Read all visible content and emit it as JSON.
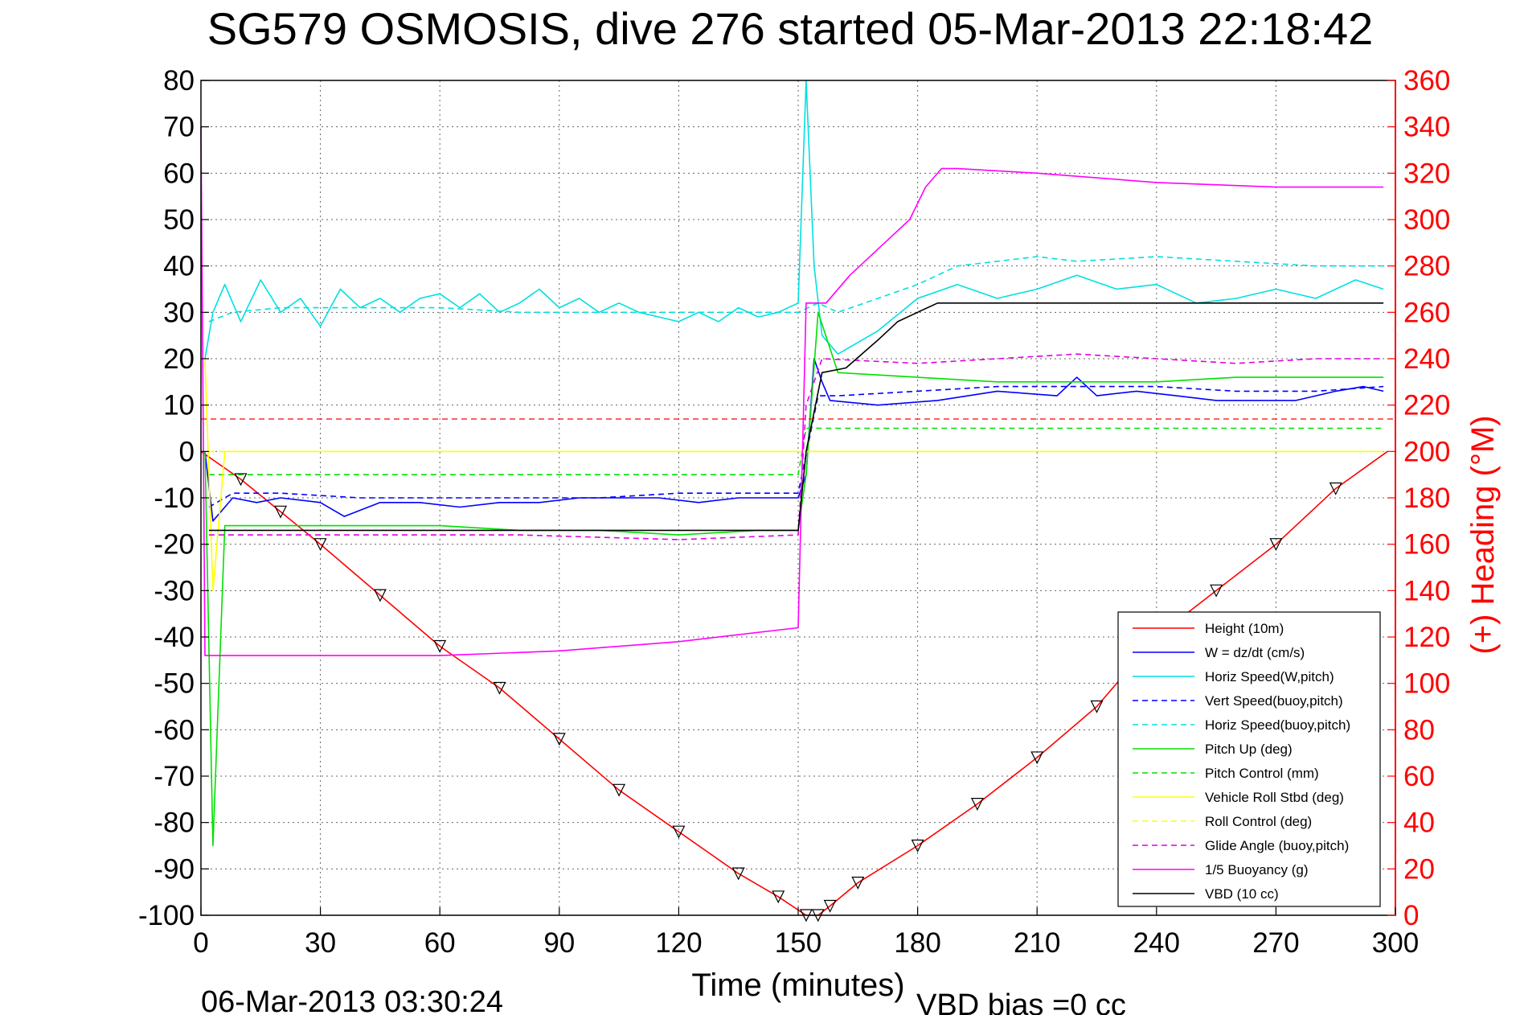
{
  "chart_data": {
    "type": "line",
    "title": "SG579 OSMOSIS, dive 276 started 05-Mar-2013 22:18:42",
    "xlabel": "Time (minutes)",
    "ylabel_right": "(+) Heading (°M)",
    "xlim": [
      0,
      300
    ],
    "ylim": [
      -100,
      80
    ],
    "ylim_right": [
      0,
      360
    ],
    "x_ticks": [
      0,
      30,
      60,
      90,
      120,
      150,
      180,
      210,
      240,
      270,
      300
    ],
    "y_ticks": [
      80,
      70,
      60,
      50,
      40,
      30,
      20,
      10,
      0,
      -10,
      -20,
      -30,
      -40,
      -50,
      -60,
      -70,
      -80,
      -90,
      -100
    ],
    "y_ticks_right": [
      360,
      340,
      320,
      300,
      280,
      260,
      240,
      220,
      200,
      180,
      160,
      140,
      120,
      100,
      80,
      60,
      40,
      20,
      0
    ],
    "grid": true,
    "legend_position": "bottom-right",
    "footer_left": "06-Mar-2013 03:30:24",
    "footer_right": "VBD bias =0 cc",
    "series": [
      {
        "name": "Height (10m)",
        "color": "#ff0000",
        "style": "solid",
        "x": [
          0,
          10,
          20,
          30,
          45,
          60,
          75,
          90,
          105,
          120,
          135,
          145,
          152,
          155,
          158,
          165,
          180,
          195,
          210,
          225,
          240,
          255,
          270,
          285,
          298
        ],
        "y": [
          0,
          -6,
          -13,
          -20,
          -31,
          -42,
          -51,
          -62,
          -73,
          -82,
          -91,
          -96,
          -100,
          -100,
          -98,
          -93,
          -85,
          -76,
          -66,
          -55,
          -40,
          -30,
          -20,
          -8,
          0
        ]
      },
      {
        "name": "W = dz/dt (cm/s)",
        "color": "#0000ff",
        "style": "solid",
        "x": [
          1,
          3,
          8,
          14,
          20,
          30,
          36,
          45,
          55,
          65,
          75,
          85,
          95,
          105,
          115,
          125,
          135,
          145,
          150,
          152,
          154,
          156,
          158,
          170,
          185,
          200,
          215,
          220,
          225,
          235,
          245,
          255,
          265,
          275,
          285,
          292,
          297
        ],
        "y": [
          0,
          -15,
          -10,
          -11,
          -10,
          -11,
          -14,
          -11,
          -11,
          -12,
          -11,
          -11,
          -10,
          -10,
          -10,
          -11,
          -10,
          -10,
          -10,
          -5,
          20,
          15,
          11,
          10,
          11,
          13,
          12,
          16,
          12,
          13,
          12,
          11,
          11,
          11,
          13,
          14,
          13
        ]
      },
      {
        "name": "Horiz Speed(W,pitch)",
        "color": "#00e0e0",
        "style": "solid",
        "x": [
          1,
          3,
          6,
          10,
          15,
          20,
          25,
          30,
          35,
          40,
          45,
          50,
          55,
          60,
          65,
          70,
          75,
          80,
          85,
          90,
          95,
          100,
          105,
          110,
          115,
          120,
          125,
          130,
          135,
          140,
          145,
          150,
          152,
          154,
          156,
          160,
          170,
          180,
          190,
          200,
          210,
          220,
          230,
          240,
          250,
          260,
          270,
          280,
          290,
          297
        ],
        "y": [
          20,
          30,
          36,
          28,
          37,
          30,
          33,
          27,
          35,
          31,
          33,
          30,
          33,
          34,
          31,
          34,
          30,
          32,
          35,
          31,
          33,
          30,
          32,
          30,
          29,
          28,
          30,
          28,
          31,
          29,
          30,
          32,
          80,
          40,
          25,
          21,
          26,
          33,
          36,
          33,
          35,
          38,
          35,
          36,
          32,
          33,
          35,
          33,
          37,
          35
        ]
      },
      {
        "name": "Vert Speed(buoy,pitch)",
        "color": "#0000ff",
        "style": "dashed",
        "x": [
          2,
          8,
          20,
          40,
          60,
          80,
          100,
          120,
          140,
          150,
          155,
          160,
          180,
          200,
          220,
          240,
          260,
          280,
          297
        ],
        "y": [
          -12,
          -9,
          -9,
          -10,
          -10,
          -10,
          -10,
          -9,
          -9,
          -9,
          12,
          12,
          13,
          14,
          14,
          14,
          13,
          13,
          14
        ]
      },
      {
        "name": "Horiz Speed(buoy,pitch)",
        "color": "#00e0e0",
        "style": "dashed",
        "x": [
          2,
          8,
          20,
          40,
          60,
          80,
          100,
          120,
          140,
          150,
          155,
          160,
          170,
          180,
          190,
          200,
          210,
          220,
          240,
          260,
          280,
          297
        ],
        "y": [
          28,
          30,
          31,
          31,
          31,
          30,
          30,
          30,
          30,
          30,
          32,
          30,
          33,
          36,
          40,
          41,
          42,
          41,
          42,
          41,
          40,
          40
        ]
      },
      {
        "name": "Pitch Up (deg)",
        "color": "#00e000",
        "style": "solid",
        "x": [
          1,
          3,
          6,
          20,
          40,
          60,
          80,
          100,
          120,
          140,
          150,
          152,
          155,
          160,
          180,
          200,
          220,
          240,
          260,
          280,
          297
        ],
        "y": [
          0,
          -85,
          -16,
          -16,
          -16,
          -16,
          -17,
          -17,
          -18,
          -17,
          -17,
          -5,
          30,
          17,
          16,
          15,
          15,
          15,
          16,
          16,
          16
        ]
      },
      {
        "name": "Pitch Control (mm)",
        "color": "#00e000",
        "style": "dashed",
        "x": [
          2,
          10,
          40,
          80,
          120,
          150,
          152,
          156,
          200,
          250,
          297
        ],
        "y": [
          -5,
          -5,
          -5,
          -5,
          -5,
          -5,
          5,
          5,
          5,
          5,
          5
        ]
      },
      {
        "name": "Vehicle Roll Stbd (deg)",
        "color": "#ffff00",
        "style": "solid",
        "x": [
          1,
          3,
          6,
          20,
          40,
          60,
          80,
          100,
          120,
          140,
          150,
          160,
          180,
          200,
          220,
          240,
          260,
          280,
          297
        ],
        "y": [
          20,
          -30,
          0,
          0,
          0,
          0,
          0,
          0,
          0,
          0,
          0,
          0,
          0,
          0,
          0,
          0,
          0,
          0,
          0
        ]
      },
      {
        "name": "Roll Control (deg)",
        "color": "#ffff00",
        "style": "dashed",
        "x": [
          2,
          297
        ],
        "y": [
          0,
          0
        ]
      },
      {
        "name": "Glide Angle (buoy,pitch)",
        "color": "#e000e0",
        "style": "dashed",
        "x": [
          2,
          10,
          40,
          80,
          120,
          150,
          152,
          156,
          180,
          200,
          220,
          240,
          260,
          280,
          297
        ],
        "y": [
          -18,
          -18,
          -18,
          -18,
          -19,
          -18,
          10,
          20,
          19,
          20,
          21,
          20,
          19,
          20,
          20
        ]
      },
      {
        "name": "1/5 Buoyancy (g)",
        "color": "#ff00ff",
        "style": "solid",
        "x": [
          0,
          1,
          3,
          30,
          60,
          90,
          120,
          150,
          152,
          157,
          163,
          168,
          173,
          178,
          182,
          186,
          190,
          210,
          240,
          270,
          297
        ],
        "y": [
          70,
          -44,
          -44,
          -44,
          -44,
          -43,
          -41,
          -38,
          32,
          32,
          38,
          42,
          46,
          50,
          57,
          61,
          61,
          60,
          58,
          57,
          57
        ]
      },
      {
        "name": "VBD (10 cc)",
        "color": "#000000",
        "style": "solid",
        "x": [
          2,
          150,
          152,
          156,
          162,
          170,
          175,
          180,
          185,
          297
        ],
        "y": [
          -17,
          -17,
          0,
          17,
          18,
          24,
          28,
          30,
          32,
          32
        ]
      }
    ],
    "heading_dashed_level": 214
  },
  "legend": {
    "items": [
      {
        "label": "Height (10m)",
        "color": "#ff0000",
        "style": "solid"
      },
      {
        "label": "W = dz/dt (cm/s)",
        "color": "#0000ff",
        "style": "solid"
      },
      {
        "label": "Horiz Speed(W,pitch)",
        "color": "#00e0e0",
        "style": "solid"
      },
      {
        "label": "Vert Speed(buoy,pitch)",
        "color": "#0000ff",
        "style": "dashed"
      },
      {
        "label": "Horiz Speed(buoy,pitch)",
        "color": "#00e0e0",
        "style": "dashed"
      },
      {
        "label": "Pitch Up (deg)",
        "color": "#00e000",
        "style": "solid"
      },
      {
        "label": "Pitch Control (mm)",
        "color": "#00e000",
        "style": "dashed"
      },
      {
        "label": "Vehicle Roll Stbd (deg)",
        "color": "#ffff00",
        "style": "solid"
      },
      {
        "label": "Roll Control (deg)",
        "color": "#ffff00",
        "style": "dashed"
      },
      {
        "label": "Glide Angle (buoy,pitch)",
        "color": "#e000e0",
        "style": "dashed"
      },
      {
        "label": "1/5 Buoyancy (g)",
        "color": "#ff00ff",
        "style": "solid"
      },
      {
        "label": "VBD (10 cc)",
        "color": "#000000",
        "style": "solid"
      }
    ]
  },
  "colors": {
    "heading_axis": "#ff0000",
    "heading_markers": "#ff0000",
    "grid": "#666666"
  }
}
